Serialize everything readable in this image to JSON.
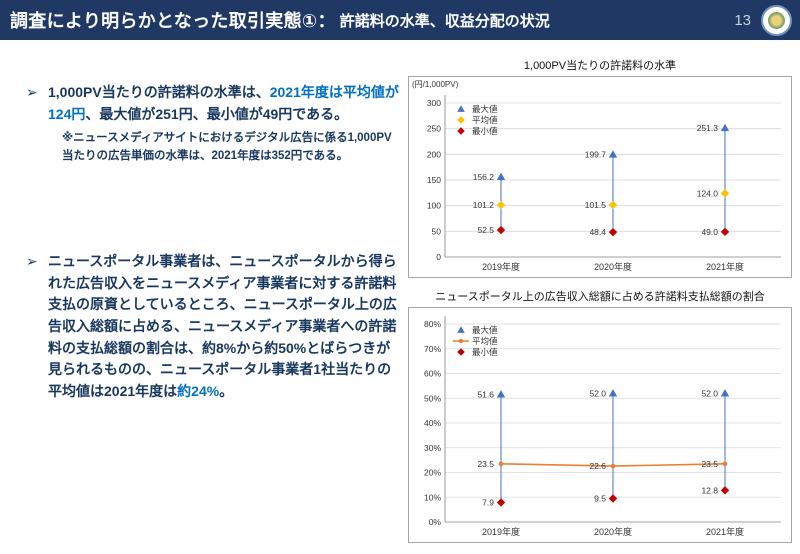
{
  "header": {
    "title": "調査により明らかとなった取引実態①：",
    "subtitle": "許諾料の水準、収益分配の状況",
    "page_number": "13",
    "logo": "jftc-emblem"
  },
  "colors": {
    "header_bg": "#1F3864",
    "body_text": "#17375E",
    "accent_blue": "#0070C0",
    "max_marker": "#4472C4",
    "mean_marker_chart1": "#FFC000",
    "mean_line_chart2": "#ED7D31",
    "min_marker": "#C00000"
  },
  "bullets": {
    "b1": {
      "marker": "➢",
      "seg1": "1,000PV当たりの許諾料の水準は、",
      "seg2": "2021年度は平均値が124円",
      "seg3": "、最大値が251円、最小値が49円である。",
      "note": "※ニュースメディアサイトにおけるデジタル広告に係る1,000PV当たりの広告単価の水準は、2021年度は352円である。"
    },
    "b2": {
      "marker": "➢",
      "seg1": "ニュースポータル事業者は、ニュースポータルから得られた広告収入をニュースメディア事業者に対する許諾料支払の原資としているところ、ニュースポータル上の広告収入総額に占める、ニュースメディア事業者への許諾料の支払総額の割合は、約8%から約50%とばらつきが見られるものの、ニュースポータル事業者1社当たりの平均値は2021年度は",
      "seg2": "約24%",
      "seg3": "。"
    }
  },
  "chart_data": [
    {
      "type": "scatter",
      "title": "1,000PV当たりの許諾料の水準",
      "unit_label": "(円/1,000PV)",
      "categories": [
        "2019年度",
        "2020年度",
        "2021年度"
      ],
      "series": [
        {
          "name": "最大値",
          "marker": "triangle",
          "color": "#4472C4",
          "values": [
            156.2,
            199.7,
            251.3
          ]
        },
        {
          "name": "平均値",
          "marker": "diamond",
          "color": "#FFC000",
          "values": [
            101.2,
            101.5,
            124.0
          ]
        },
        {
          "name": "最小値",
          "marker": "diamond",
          "color": "#C00000",
          "values": [
            52.5,
            48.4,
            49.0
          ]
        }
      ],
      "ylim": [
        0,
        300
      ],
      "ytick": 50,
      "percent": false,
      "grid": true,
      "legend_position": "top-left",
      "hilo_line_color": "#4472C4"
    },
    {
      "type": "scatter",
      "title": "ニュースポータル上の広告収入総額に占める許諾料支払総額の割合",
      "unit_label": "",
      "categories": [
        "2019年度",
        "2020年度",
        "2021年度"
      ],
      "series": [
        {
          "name": "最大値",
          "marker": "triangle",
          "color": "#4472C4",
          "values": [
            51.6,
            52.0,
            52.0
          ]
        },
        {
          "name": "平均値",
          "marker": "circle",
          "color": "#ED7D31",
          "values": [
            23.5,
            22.6,
            23.5
          ],
          "connect": true
        },
        {
          "name": "最小値",
          "marker": "diamond",
          "color": "#C00000",
          "values": [
            7.9,
            9.5,
            12.8
          ]
        }
      ],
      "ylim": [
        0,
        80
      ],
      "ytick": 10,
      "percent": true,
      "grid": true,
      "legend_position": "top-left",
      "hilo_line_color": "#4472C4"
    }
  ]
}
